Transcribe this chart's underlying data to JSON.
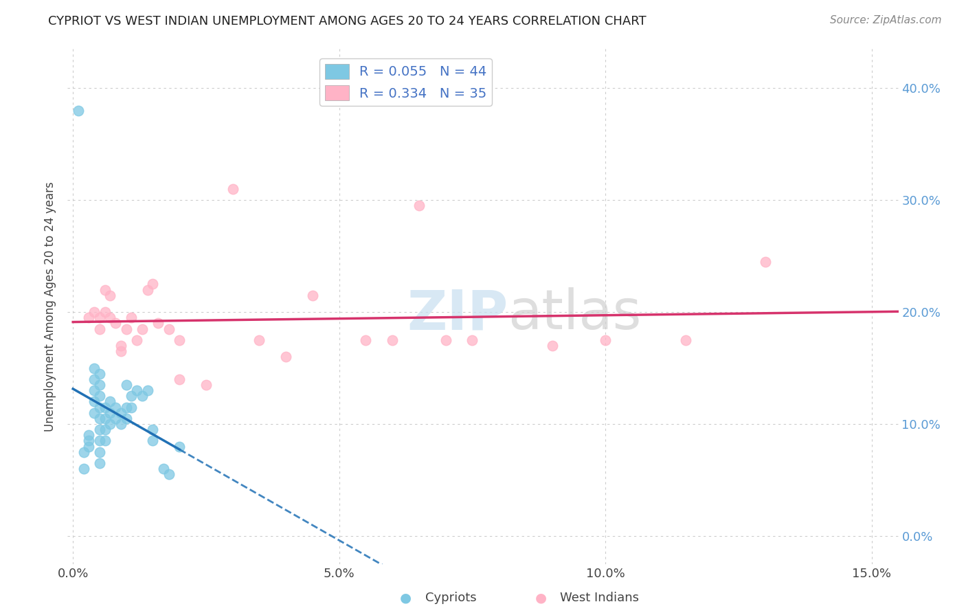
{
  "title": "CYPRIOT VS WEST INDIAN UNEMPLOYMENT AMONG AGES 20 TO 24 YEARS CORRELATION CHART",
  "source": "Source: ZipAtlas.com",
  "ylabel": "Unemployment Among Ages 20 to 24 years",
  "xlabel_ticks": [
    "0.0%",
    "5.0%",
    "10.0%",
    "15.0%"
  ],
  "xlabel_vals": [
    0.0,
    0.05,
    0.1,
    0.15
  ],
  "ylabel_ticks": [
    "0.0%",
    "10.0%",
    "20.0%",
    "30.0%",
    "40.0%"
  ],
  "ylabel_vals": [
    0.0,
    0.1,
    0.2,
    0.3,
    0.4
  ],
  "xlim": [
    -0.001,
    0.155
  ],
  "ylim": [
    -0.025,
    0.435
  ],
  "cypriot_R": 0.055,
  "cypriot_N": 44,
  "westindian_R": 0.334,
  "westindian_N": 35,
  "cypriot_color": "#7ec8e3",
  "westindian_color": "#ffb3c6",
  "cypriot_line_color": "#2171b5",
  "westindian_line_color": "#d6336c",
  "cypriot_x": [
    0.002,
    0.002,
    0.003,
    0.003,
    0.003,
    0.004,
    0.004,
    0.004,
    0.004,
    0.004,
    0.005,
    0.005,
    0.005,
    0.005,
    0.005,
    0.005,
    0.005,
    0.005,
    0.005,
    0.006,
    0.006,
    0.006,
    0.006,
    0.007,
    0.007,
    0.007,
    0.008,
    0.008,
    0.009,
    0.009,
    0.01,
    0.01,
    0.01,
    0.011,
    0.011,
    0.012,
    0.013,
    0.014,
    0.015,
    0.015,
    0.017,
    0.018,
    0.02,
    0.001
  ],
  "cypriot_y": [
    0.075,
    0.06,
    0.09,
    0.085,
    0.08,
    0.15,
    0.14,
    0.13,
    0.12,
    0.11,
    0.145,
    0.135,
    0.125,
    0.115,
    0.105,
    0.095,
    0.085,
    0.075,
    0.065,
    0.115,
    0.105,
    0.095,
    0.085,
    0.12,
    0.11,
    0.1,
    0.115,
    0.105,
    0.11,
    0.1,
    0.135,
    0.115,
    0.105,
    0.125,
    0.115,
    0.13,
    0.125,
    0.13,
    0.095,
    0.085,
    0.06,
    0.055,
    0.08,
    0.38
  ],
  "westindian_x": [
    0.003,
    0.004,
    0.005,
    0.005,
    0.006,
    0.006,
    0.007,
    0.007,
    0.008,
    0.009,
    0.009,
    0.01,
    0.011,
    0.012,
    0.013,
    0.014,
    0.015,
    0.016,
    0.018,
    0.02,
    0.02,
    0.025,
    0.03,
    0.035,
    0.04,
    0.045,
    0.055,
    0.06,
    0.065,
    0.07,
    0.075,
    0.09,
    0.1,
    0.115,
    0.13
  ],
  "westindian_y": [
    0.195,
    0.2,
    0.195,
    0.185,
    0.22,
    0.2,
    0.215,
    0.195,
    0.19,
    0.17,
    0.165,
    0.185,
    0.195,
    0.175,
    0.185,
    0.22,
    0.225,
    0.19,
    0.185,
    0.175,
    0.14,
    0.135,
    0.31,
    0.175,
    0.16,
    0.215,
    0.175,
    0.175,
    0.295,
    0.175,
    0.175,
    0.17,
    0.175,
    0.175,
    0.245
  ],
  "watermark_zip": "ZIP",
  "watermark_atlas": "atlas",
  "background_color": "#ffffff",
  "grid_color": "#cccccc"
}
